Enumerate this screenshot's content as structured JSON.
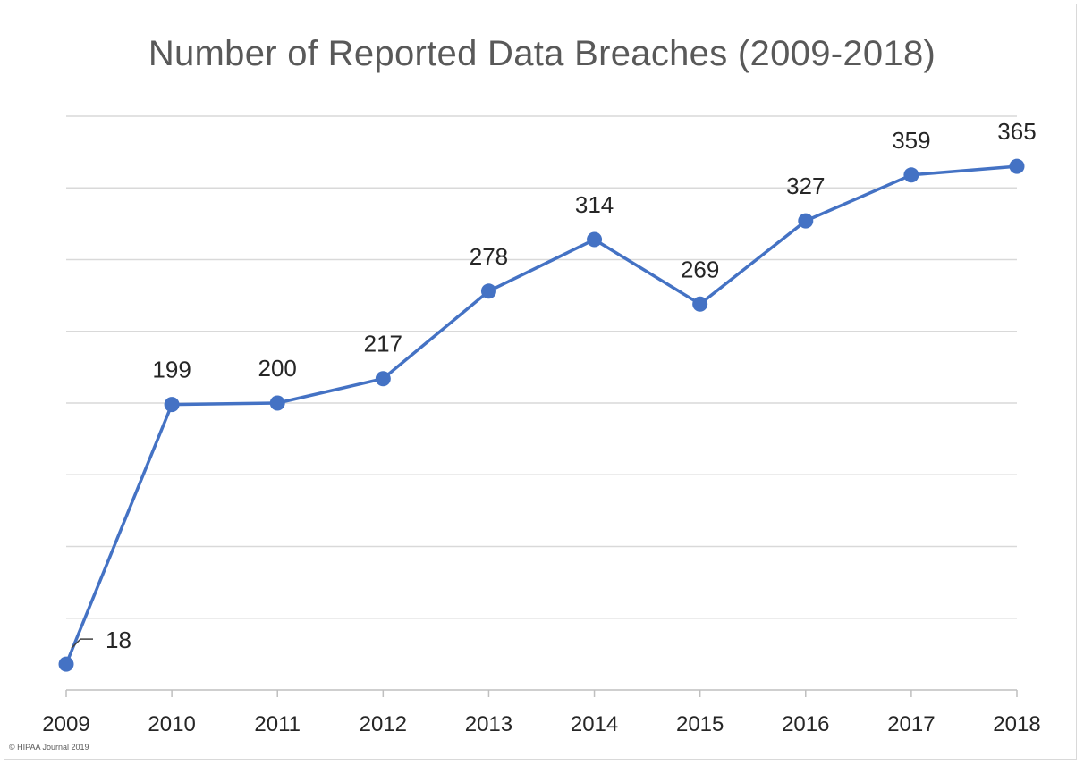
{
  "chart_data": {
    "type": "line",
    "title": "Number of Reported Data Breaches (2009-2018)",
    "xlabel": "",
    "ylabel": "",
    "categories": [
      "2009",
      "2010",
      "2011",
      "2012",
      "2013",
      "2014",
      "2015",
      "2016",
      "2017",
      "2018"
    ],
    "series": [
      {
        "values": [
          18,
          199,
          200,
          217,
          278,
          314,
          269,
          327,
          359,
          365
        ]
      }
    ],
    "data_labels": [
      "18",
      "199",
      "200",
      "217",
      "278",
      "314",
      "269",
      "327",
      "359",
      "365"
    ],
    "ylim": [
      0,
      400
    ],
    "y_gridlines": [
      50,
      100,
      150,
      200,
      250,
      300,
      350,
      400
    ],
    "y_axis_labels_shown": false,
    "grid": true,
    "legend": "none",
    "colors": {
      "line": "#4472c4",
      "marker": "#4472c4",
      "grid": "#d9d9d9",
      "axis": "#bfbfbf"
    }
  },
  "footer": {
    "credit": "© HIPAA Journal 2019"
  }
}
